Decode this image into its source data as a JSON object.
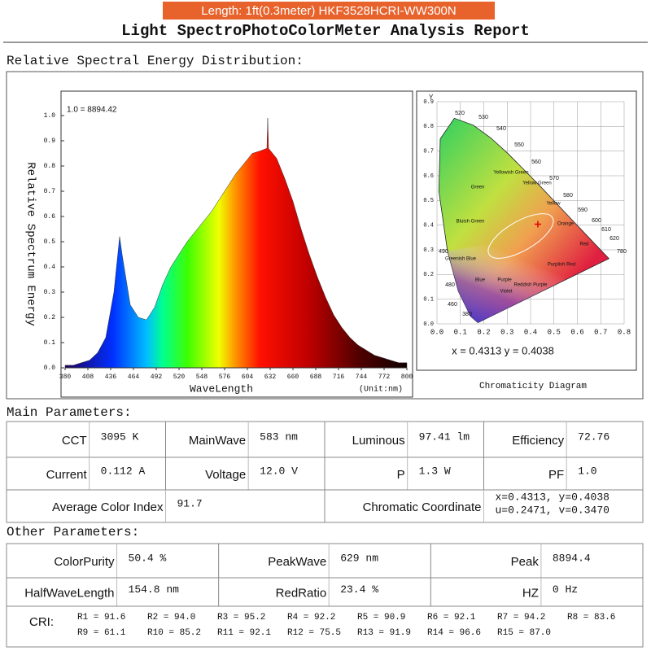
{
  "header": {
    "banner": "Length: 1ft(0.3meter)  HKF3528HCRI-WW300N",
    "title": "Light SpectroPhotoColorMeter Analysis Report"
  },
  "spectrum": {
    "section_title": "Relative Spectral Energy Distribution:",
    "scale_label": "1.0 = 8894.42",
    "y_axis_label": "Relative Spectrum Energy",
    "x_axis_label": "WaveLength",
    "unit_label": "(Unit:nm)",
    "xlim": [
      380,
      800
    ],
    "ylim": [
      0,
      1.0
    ],
    "xticks": [
      380,
      408,
      436,
      464,
      492,
      520,
      548,
      576,
      604,
      632,
      660,
      688,
      716,
      744,
      772,
      800
    ],
    "yticks": [
      {
        "value": 0,
        "label": "0.0"
      },
      0.1,
      0.2,
      0.3,
      0.4,
      0.5,
      0.6,
      0.7,
      0.8,
      0.9,
      {
        "value": 1,
        "label": "1.0"
      }
    ],
    "x": [
      380,
      390,
      400,
      410,
      420,
      430,
      440,
      447,
      450,
      460,
      470,
      480,
      490,
      500,
      510,
      520,
      530,
      540,
      550,
      560,
      570,
      580,
      590,
      600,
      610,
      620,
      628,
      629,
      630,
      640,
      650,
      660,
      670,
      680,
      690,
      700,
      710,
      720,
      730,
      740,
      750,
      760,
      770,
      780,
      790,
      800
    ],
    "values": [
      0.01,
      0.01,
      0.02,
      0.03,
      0.06,
      0.12,
      0.3,
      0.52,
      0.45,
      0.25,
      0.2,
      0.19,
      0.24,
      0.33,
      0.4,
      0.45,
      0.5,
      0.54,
      0.58,
      0.62,
      0.67,
      0.72,
      0.77,
      0.81,
      0.85,
      0.86,
      0.87,
      0.99,
      0.87,
      0.83,
      0.75,
      0.66,
      0.55,
      0.45,
      0.36,
      0.28,
      0.21,
      0.16,
      0.12,
      0.09,
      0.07,
      0.05,
      0.04,
      0.03,
      0.02,
      0.02
    ]
  },
  "chromaticity": {
    "caption": "Chromaticity Diagram",
    "coordinate_label": "x = 0.4313   y = 0.4038",
    "y_axis_label": "Y",
    "point": {
      "x": 0.4313,
      "y": 0.4038
    },
    "xlim": [
      0,
      0.8
    ],
    "ylim": [
      0,
      0.9
    ],
    "xticks": [
      {
        "value": 0,
        "label": "0.0"
      },
      0.1,
      0.2,
      0.3,
      0.4,
      0.5,
      0.6,
      0.7,
      0.8
    ],
    "yticks": [
      {
        "value": 0,
        "label": "0.0"
      },
      0.1,
      0.2,
      0.3,
      0.4,
      0.5,
      0.6,
      0.7,
      0.8,
      0.9
    ],
    "wavelength_labels": [
      "520",
      "530",
      "540",
      "550",
      "560",
      "570",
      "580",
      "590",
      "600",
      "610",
      "620",
      "780",
      "490",
      "480",
      "460",
      "380"
    ],
    "region_labels": [
      "Green",
      "Yellowish Green",
      "Yellow Green",
      "Yellow",
      "Bluish Green",
      "Greenish Blue",
      "Blue",
      "Purple",
      "Violet",
      "Reddish Purple",
      "Purplish Red",
      "Red",
      "Orange"
    ]
  },
  "main_parameters": {
    "title": "Main Parameters:",
    "rows": [
      [
        {
          "label": "CCT",
          "value": [
            "3095 K"
          ]
        },
        {
          "label": "MainWave",
          "value": [
            "583 nm"
          ]
        },
        {
          "label": "Luminous",
          "value": [
            "97.41 lm"
          ]
        },
        {
          "label": "Efficiency",
          "value": [
            "72.76"
          ]
        }
      ],
      [
        {
          "label": "Current",
          "value": [
            "0.112 A"
          ]
        },
        {
          "label": "Voltage",
          "value": [
            "12.0 V"
          ]
        },
        {
          "label": "P",
          "value": [
            "1.3 W"
          ]
        },
        {
          "label": "PF",
          "value": [
            "1.0"
          ]
        }
      ],
      [
        {
          "label": "Average Color Index",
          "value": [
            "91.7"
          ]
        },
        {
          "label": "Chromatic Coordinate",
          "value": [
            "x=0.4313,  y=0.4038",
            "u=0.2471,  v=0.3470"
          ]
        }
      ]
    ]
  },
  "other_parameters": {
    "title": "Other Parameters:",
    "rows": [
      [
        {
          "label": "ColorPurity",
          "value": [
            "50.4 %"
          ]
        },
        {
          "label": "PeakWave",
          "value": [
            "629 nm"
          ]
        },
        {
          "label": "Peak",
          "value": [
            "8894.4"
          ]
        }
      ],
      [
        {
          "label": "HalfWaveLength",
          "value": [
            "154.8 nm"
          ]
        },
        {
          "label": "RedRatio",
          "value": [
            "23.4 %"
          ]
        },
        {
          "label": "HZ",
          "value": [
            "0 Hz"
          ]
        }
      ]
    ],
    "cri": {
      "label": "CRI:",
      "items": [
        "R1 = 91.6",
        "R2 = 94.0",
        "R3 = 95.2",
        "R4 = 92.2",
        "R5 = 90.9",
        "R6 = 92.1",
        "R7 = 94.2",
        "R8 = 83.6",
        "R9 = 61.1",
        "R10 = 85.2",
        "R11 = 92.1",
        "R12 = 75.5",
        "R13 = 91.9",
        "R14 = 96.6",
        "R15 = 87.0"
      ]
    }
  }
}
